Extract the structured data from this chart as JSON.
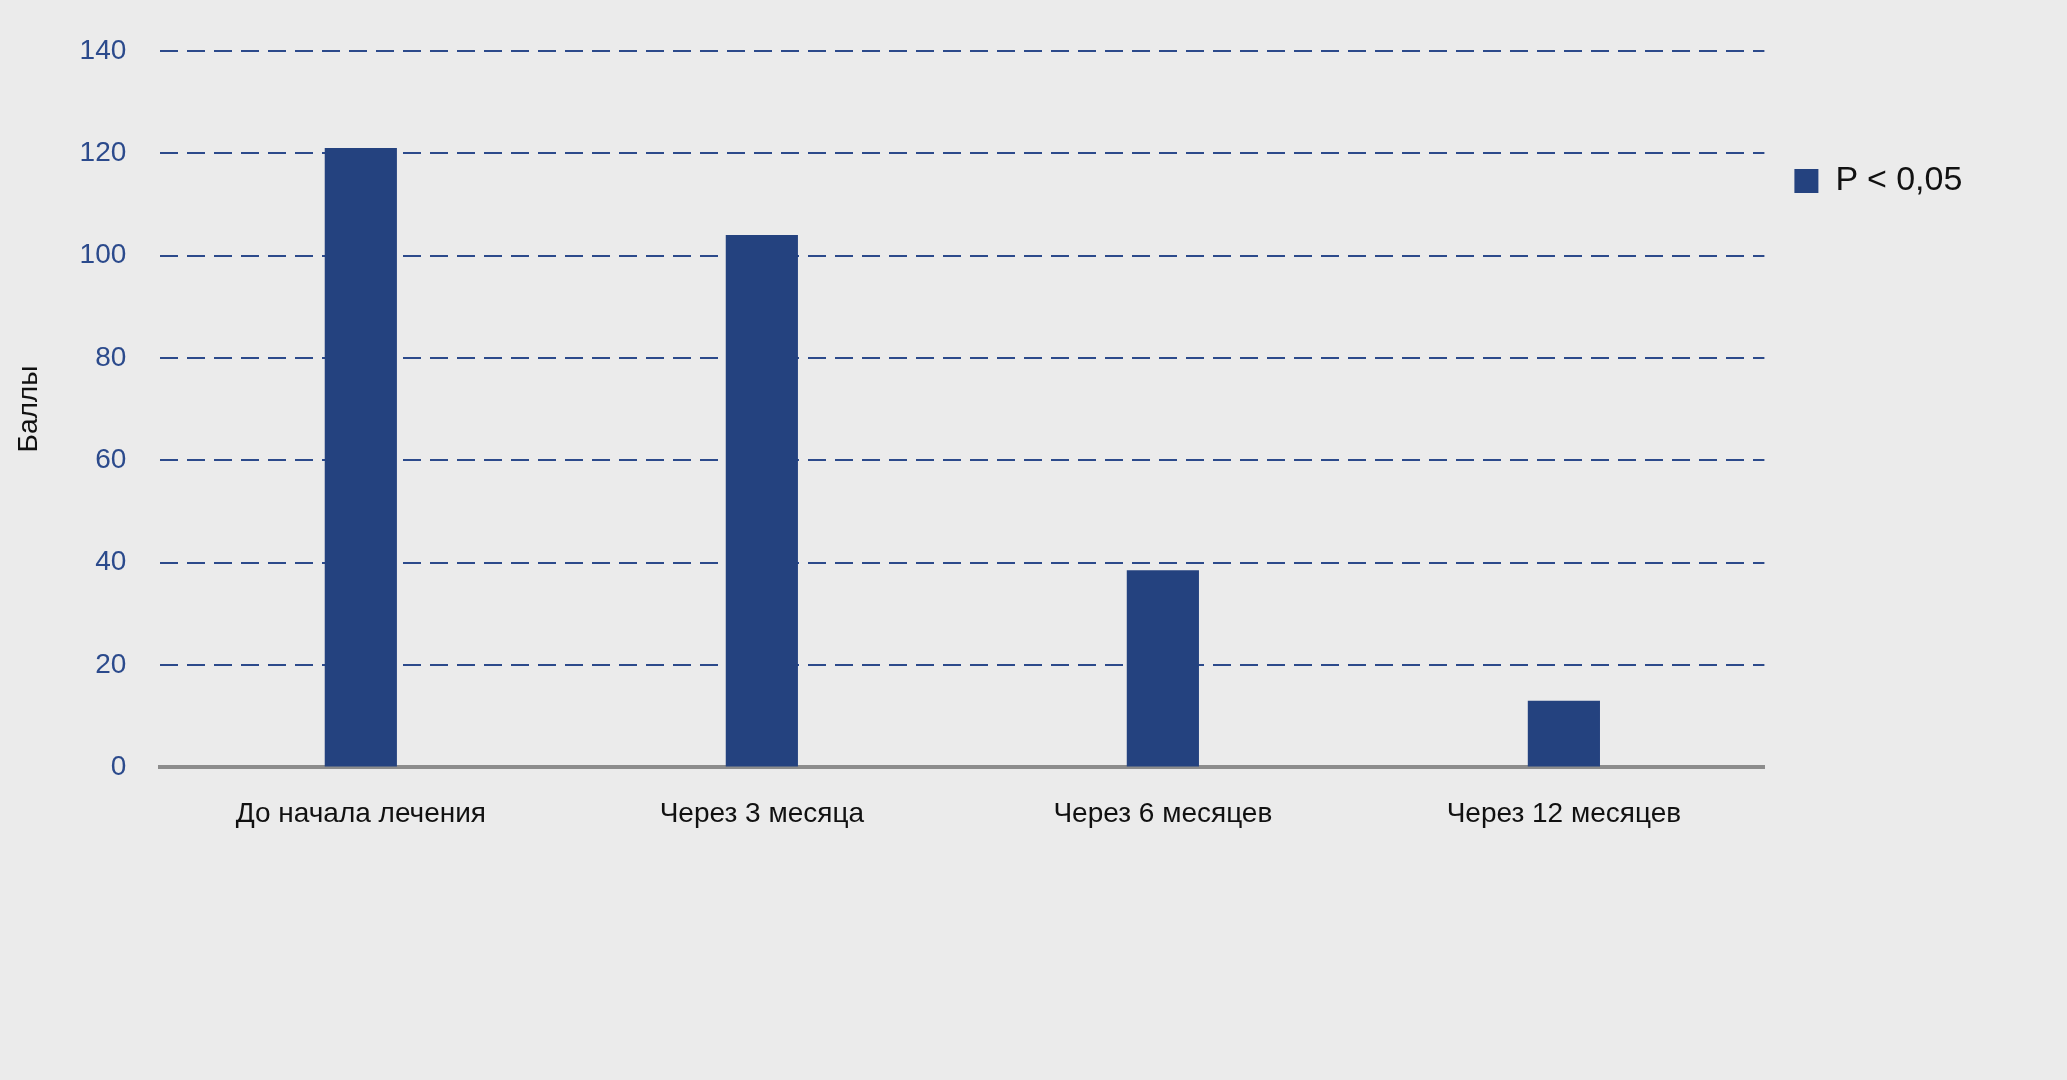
{
  "chart_data": {
    "type": "bar",
    "ylabel": "Баллы",
    "categories": [
      "До начала лечения",
      "Через 3 месяца",
      "Через 6 месяцев",
      "Через 12 месяцев"
    ],
    "series": [
      {
        "name": "P < 0,05",
        "color": "#24427f",
        "values": [
          121,
          104,
          38.5,
          13
        ]
      }
    ],
    "ylim": [
      0,
      140
    ],
    "yticks": [
      0,
      20,
      40,
      60,
      80,
      100,
      120,
      140
    ],
    "grid": "y",
    "legend": "right"
  }
}
